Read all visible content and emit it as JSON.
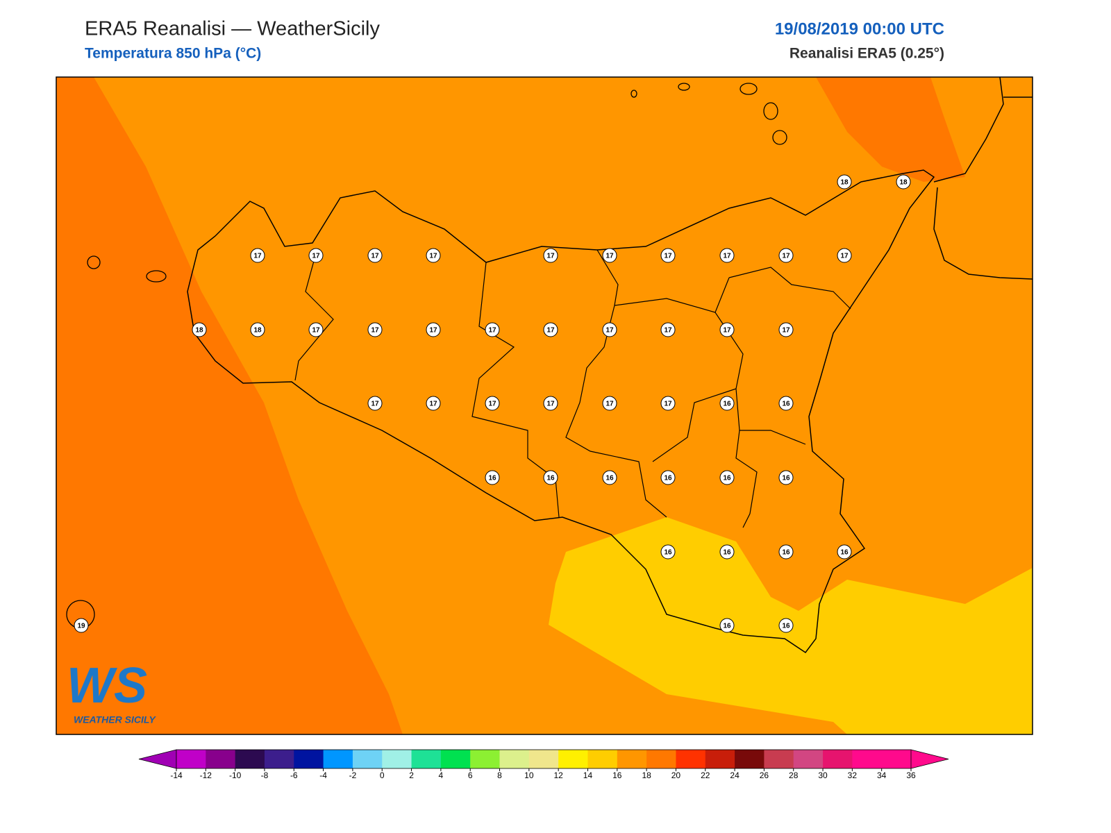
{
  "header": {
    "title": "ERA5 Reanalisi — WeatherSicily",
    "subtitle": "Temperatura 850 hPa (°C)",
    "date": "19/08/2019 00:00 UTC",
    "source": "Reanalisi ERA5 (0.25°)"
  },
  "map": {
    "points": [
      18,
      18,
      17,
      17,
      17,
      17,
      17,
      17,
      17,
      17,
      17,
      17,
      18,
      18,
      17,
      17,
      17,
      17,
      17,
      17,
      17,
      17,
      17,
      17,
      17,
      17,
      17,
      17,
      17,
      16,
      16,
      16,
      16,
      16,
      16,
      16,
      16,
      16,
      16,
      16,
      16,
      19,
      16,
      16
    ]
  },
  "logo": {
    "text": "WS",
    "caption": "WEATHER SICILY"
  },
  "legend": {
    "ticks": [
      -14,
      -12,
      -10,
      -8,
      -6,
      -4,
      -2,
      0,
      2,
      4,
      6,
      8,
      10,
      12,
      14,
      16,
      18,
      20,
      22,
      24,
      26,
      28,
      30,
      32,
      34,
      36
    ],
    "under_color": "#a000b4",
    "over_color": "#ff0a8c",
    "colors": [
      "#c000c8",
      "#88008c",
      "#2c0a50",
      "#3c1e8c",
      "#0014a0",
      "#0096ff",
      "#6ed2f5",
      "#a0f0e6",
      "#1ee196",
      "#00e150",
      "#8cf032",
      "#dcf08c",
      "#f0e68c",
      "#fff000",
      "#ffcd00",
      "#ff9600",
      "#ff7800",
      "#ff3200",
      "#c81e0a",
      "#780a0a",
      "#c83c50",
      "#d24682",
      "#e6146e",
      "#ff0a8c",
      "#ff0a8c"
    ]
  }
}
